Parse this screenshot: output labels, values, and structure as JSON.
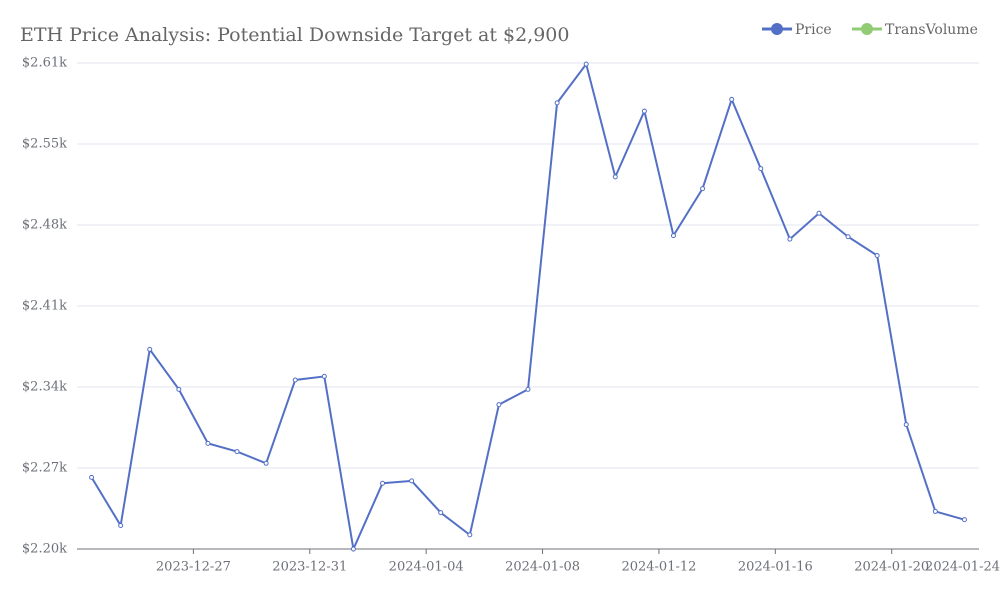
{
  "chart_data": {
    "type": "line",
    "title": "ETH Price Analysis: Potential Downside Target at $2,900",
    "x": [
      "2023-12-23",
      "2023-12-24",
      "2023-12-25",
      "2023-12-26",
      "2023-12-27",
      "2023-12-28",
      "2023-12-29",
      "2023-12-30",
      "2023-12-31",
      "2024-01-01",
      "2024-01-02",
      "2024-01-03",
      "2024-01-04",
      "2024-01-05",
      "2024-01-06",
      "2024-01-07",
      "2024-01-08",
      "2024-01-09",
      "2024-01-10",
      "2024-01-11",
      "2024-01-12",
      "2024-01-13",
      "2024-01-14",
      "2024-01-15",
      "2024-01-16",
      "2024-01-17",
      "2024-01-18",
      "2024-01-19",
      "2024-01-20",
      "2024-01-21",
      "2024-01-22"
    ],
    "series": [
      {
        "name": "Price",
        "color": "#5470c6",
        "values": [
          2261,
          2220,
          2370,
          2336,
          2290,
          2283,
          2273,
          2344,
          2347,
          2200,
          2256,
          2258,
          2231,
          2212,
          2323,
          2336,
          2580,
          2613,
          2517,
          2573,
          2467,
          2507,
          2583,
          2524,
          2464,
          2486,
          2466,
          2450,
          2306,
          2232,
          2225
        ]
      },
      {
        "name": "TransVolume",
        "color": "#91cc75",
        "values": [
          null,
          null,
          null,
          null,
          null,
          null,
          null,
          null,
          null,
          null,
          null,
          null,
          null,
          null,
          null,
          null,
          null,
          null,
          null,
          null,
          null,
          null,
          null,
          null,
          null,
          null,
          null,
          null,
          null,
          null,
          null
        ]
      }
    ],
    "xlim": [
      "2023-12-23",
      "2024-01-23"
    ],
    "xticks": [
      "2023-12-27",
      "2023-12-31",
      "2024-01-04",
      "2024-01-08",
      "2024-01-12",
      "2024-01-16",
      "2024-01-20",
      "2024-01-24"
    ],
    "ylim": [
      2200,
      2614
    ],
    "yticks": [
      {
        "value": 2200,
        "label": "$2.20k"
      },
      {
        "value": 2269,
        "label": "$2.27k"
      },
      {
        "value": 2338,
        "label": "$2.34k"
      },
      {
        "value": 2407,
        "label": "$2.41k"
      },
      {
        "value": 2476,
        "label": "$2.48k"
      },
      {
        "value": 2545,
        "label": "$2.55k"
      },
      {
        "value": 2614,
        "label": "$2.61k"
      }
    ],
    "grid": true
  }
}
